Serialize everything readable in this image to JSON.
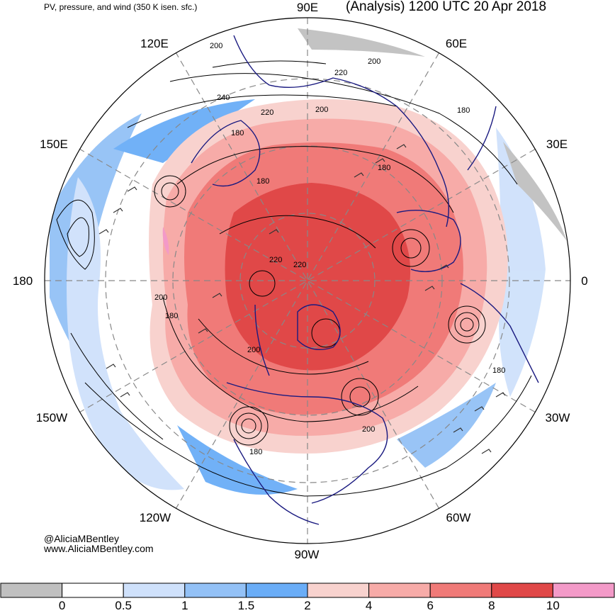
{
  "header": {
    "left_title": "PV, pressure, and wind (350 K isen. sfc.)",
    "right_title": "(Analysis) 1200 UTC 20 Apr 2018"
  },
  "longitude_labels": [
    "90E",
    "60E",
    "30E",
    "0",
    "30W",
    "60W",
    "90W",
    "120W",
    "150W",
    "180",
    "150E",
    "120E"
  ],
  "contour_labels": [
    "200",
    "220",
    "200",
    "180",
    "240",
    "220",
    "200",
    "180",
    "180",
    "180",
    "220",
    "220",
    "200",
    "180",
    "200",
    "180",
    "200",
    "180"
  ],
  "credit": {
    "handle": "@AliciaMBentley",
    "website": "www.AliciaMBentley.com"
  },
  "colorbar": {
    "ticks": [
      "0",
      "0.5",
      "1",
      "1.5",
      "2",
      "4",
      "6",
      "8",
      "10"
    ],
    "colors": [
      "#c0c0c0",
      "#ffffff",
      "#cfe1fb",
      "#93c1f6",
      "#6aadf7",
      "#f8d2ce",
      "#f7aba8",
      "#f07a78",
      "#e04848",
      "#f39ac8"
    ]
  },
  "colors": {
    "ocean_background": "#ffffff",
    "coastline": "#1a1a80",
    "contour": "#000000",
    "grid": "#888888"
  }
}
